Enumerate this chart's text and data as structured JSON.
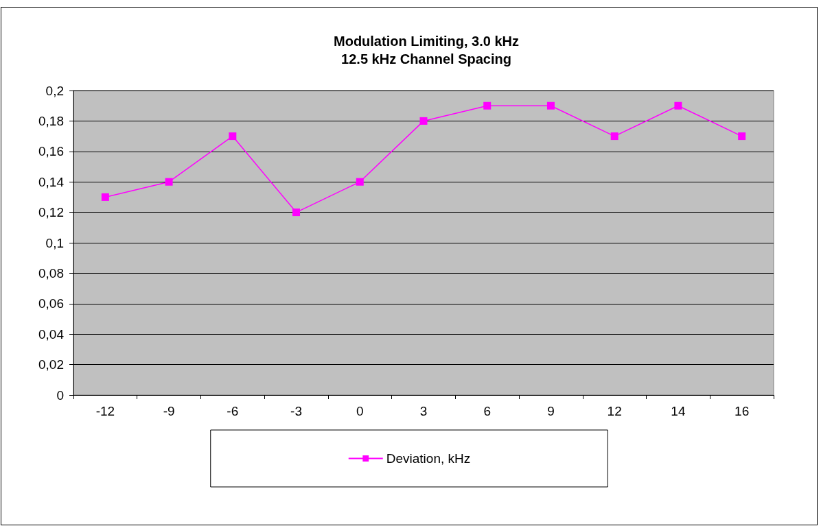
{
  "chart_data": {
    "type": "line",
    "title": "Modulation Limiting, 3.0 kHz",
    "subtitle": "12.5 kHz Channel Spacing",
    "categories": [
      "-12",
      "-9",
      "-6",
      "-3",
      "0",
      "3",
      "6",
      "9",
      "12",
      "14",
      "16"
    ],
    "series": [
      {
        "name": "Deviation, kHz",
        "color": "#ff00ff",
        "values": [
          0.13,
          0.14,
          0.17,
          0.12,
          0.14,
          0.18,
          0.19,
          0.19,
          0.17,
          0.19,
          0.17
        ]
      }
    ],
    "ylim": [
      0,
      0.2
    ],
    "yticks": [
      {
        "value": 0,
        "label": "0"
      },
      {
        "value": 0.02,
        "label": "0,02"
      },
      {
        "value": 0.04,
        "label": "0,04"
      },
      {
        "value": 0.06,
        "label": "0,06"
      },
      {
        "value": 0.08,
        "label": "0,08"
      },
      {
        "value": 0.1,
        "label": "0,1"
      },
      {
        "value": 0.12,
        "label": "0,12"
      },
      {
        "value": 0.14,
        "label": "0,14"
      },
      {
        "value": 0.16,
        "label": "0,16"
      },
      {
        "value": 0.18,
        "label": "0,18"
      },
      {
        "value": 0.2,
        "label": "0,2"
      }
    ],
    "grid": "y",
    "legend": "bottom",
    "marker": "square",
    "line_style": "solid"
  }
}
